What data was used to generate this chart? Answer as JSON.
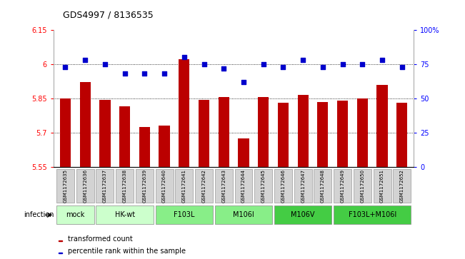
{
  "title": "GDS4997 / 8136535",
  "samples": [
    "GSM1172635",
    "GSM1172636",
    "GSM1172637",
    "GSM1172638",
    "GSM1172639",
    "GSM1172640",
    "GSM1172641",
    "GSM1172642",
    "GSM1172643",
    "GSM1172644",
    "GSM1172645",
    "GSM1172646",
    "GSM1172647",
    "GSM1172648",
    "GSM1172649",
    "GSM1172650",
    "GSM1172651",
    "GSM1172652"
  ],
  "red_values": [
    5.85,
    5.92,
    5.845,
    5.815,
    5.725,
    5.73,
    6.02,
    5.845,
    5.855,
    5.675,
    5.855,
    5.83,
    5.865,
    5.835,
    5.84,
    5.85,
    5.91,
    5.83
  ],
  "blue_values": [
    73,
    78,
    75,
    68,
    68,
    68,
    80,
    75,
    72,
    62,
    75,
    73,
    78,
    73,
    75,
    75,
    78,
    73
  ],
  "group_defs": [
    {
      "label": "mock",
      "start": 0,
      "end": 1,
      "color": "#ccffcc"
    },
    {
      "label": "HK-wt",
      "start": 2,
      "end": 4,
      "color": "#ccffcc"
    },
    {
      "label": "F103L",
      "start": 5,
      "end": 7,
      "color": "#88ee88"
    },
    {
      "label": "M106I",
      "start": 8,
      "end": 10,
      "color": "#88ee88"
    },
    {
      "label": "M106V",
      "start": 11,
      "end": 13,
      "color": "#44cc44"
    },
    {
      "label": "F103L+M106I",
      "start": 14,
      "end": 17,
      "color": "#44cc44"
    }
  ],
  "ylim_left": [
    5.55,
    6.15
  ],
  "ylim_right": [
    0,
    100
  ],
  "yticks_left": [
    5.55,
    5.7,
    5.85,
    6.0,
    6.15
  ],
  "yticks_right": [
    0,
    25,
    50,
    75,
    100
  ],
  "ytick_labels_left": [
    "5.55",
    "5.7",
    "5.85",
    "6",
    "6.15"
  ],
  "ytick_labels_right": [
    "0",
    "25",
    "50",
    "75",
    "100%"
  ],
  "hlines": [
    5.7,
    5.85,
    6.0
  ],
  "bar_color": "#bb0000",
  "dot_color": "#0000cc",
  "sample_box_color": "#d3d3d3",
  "background_color": "#ffffff",
  "infection_label": "infection",
  "legend_red": "transformed count",
  "legend_blue": "percentile rank within the sample"
}
